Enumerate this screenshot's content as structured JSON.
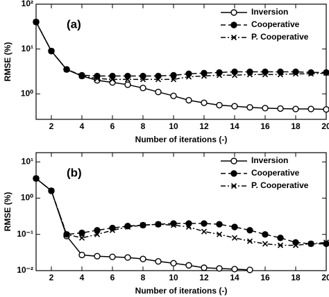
{
  "chart_data": [
    {
      "type": "line",
      "annotation": "(a)",
      "xlabel": "Number of iterations (-)",
      "ylabel": "RMSE (%)",
      "yscale": "log",
      "xlim": [
        1,
        20
      ],
      "ylim": [
        0.27,
        100
      ],
      "xticks": [
        2,
        4,
        6,
        8,
        10,
        12,
        14,
        16,
        18,
        20
      ],
      "yticks": [
        {
          "value": 1,
          "label": "10⁰"
        },
        {
          "value": 10,
          "label": "10¹"
        },
        {
          "value": 100,
          "label": "10²"
        }
      ],
      "legend": "upper right",
      "x": [
        1,
        2,
        3,
        4,
        5,
        6,
        7,
        8,
        9,
        10,
        11,
        12,
        13,
        14,
        15,
        16,
        17,
        18,
        19,
        20
      ],
      "series": [
        {
          "name": "Inversion",
          "color": "#000000",
          "linestyle": "solid",
          "marker": "open-circle",
          "values": [
            40,
            9,
            3.5,
            2.5,
            2.0,
            1.8,
            1.6,
            1.35,
            1.1,
            0.9,
            0.72,
            0.63,
            0.56,
            0.53,
            0.5,
            0.48,
            0.47,
            0.46,
            0.46,
            0.45
          ]
        },
        {
          "name": "Cooperative",
          "color": "#000000",
          "linestyle": "dashed",
          "marker": "filled-circle",
          "values": [
            40,
            9,
            3.5,
            2.6,
            2.5,
            2.5,
            2.5,
            2.5,
            2.5,
            2.6,
            2.8,
            2.9,
            3.0,
            3.1,
            3.1,
            3.1,
            3.1,
            3.1,
            3.0,
            3.0
          ]
        },
        {
          "name": "P. Cooperative",
          "color": "#000000",
          "linestyle": "dashdot",
          "marker": "x",
          "values": [
            40,
            9,
            3.5,
            2.5,
            2.2,
            2.1,
            2.1,
            2.1,
            2.1,
            2.1,
            2.4,
            2.5,
            2.6,
            2.6,
            2.7,
            2.7,
            2.7,
            2.8,
            2.8,
            2.9
          ]
        }
      ]
    },
    {
      "type": "line",
      "annotation": "(b)",
      "xlabel": "Number of iterations (-)",
      "ylabel": "RMSE (%)",
      "yscale": "log",
      "xlim": [
        1,
        20
      ],
      "ylim": [
        0.01,
        18
      ],
      "xticks": [
        2,
        4,
        6,
        8,
        10,
        12,
        14,
        16,
        18,
        20
      ],
      "yticks": [
        {
          "value": 0.01,
          "label": "10⁻²"
        },
        {
          "value": 0.1,
          "label": "10⁻¹"
        },
        {
          "value": 1,
          "label": "10⁰"
        },
        {
          "value": 10,
          "label": "10¹"
        }
      ],
      "legend": "upper right",
      "x": [
        1,
        2,
        3,
        4,
        5,
        6,
        7,
        8,
        9,
        10,
        11,
        12,
        13,
        14,
        15,
        16,
        17,
        18,
        19,
        20
      ],
      "series": [
        {
          "name": "Inversion",
          "color": "#000000",
          "linestyle": "solid",
          "marker": "open-circle",
          "values": [
            3.5,
            1.6,
            0.09,
            0.027,
            0.025,
            0.024,
            0.023,
            0.021,
            0.018,
            0.016,
            0.014,
            0.012,
            0.0115,
            0.011,
            0.0105,
            null,
            null,
            null,
            null,
            null
          ]
        },
        {
          "name": "Cooperative",
          "color": "#000000",
          "linestyle": "dashed",
          "marker": "filled-circle",
          "values": [
            3.5,
            1.6,
            0.1,
            0.11,
            0.13,
            0.15,
            0.17,
            0.18,
            0.19,
            0.2,
            0.2,
            0.2,
            0.19,
            0.16,
            0.13,
            0.1,
            0.08,
            0.06,
            0.055,
            0.055
          ]
        },
        {
          "name": "P. Cooperative",
          "color": "#000000",
          "linestyle": "dashdot",
          "marker": "x",
          "values": [
            3.5,
            1.6,
            0.1,
            0.08,
            0.1,
            0.13,
            0.16,
            0.18,
            0.19,
            0.18,
            0.16,
            0.12,
            0.1,
            0.08,
            0.065,
            0.055,
            0.05,
            0.05,
            0.055,
            0.06
          ]
        }
      ]
    }
  ]
}
